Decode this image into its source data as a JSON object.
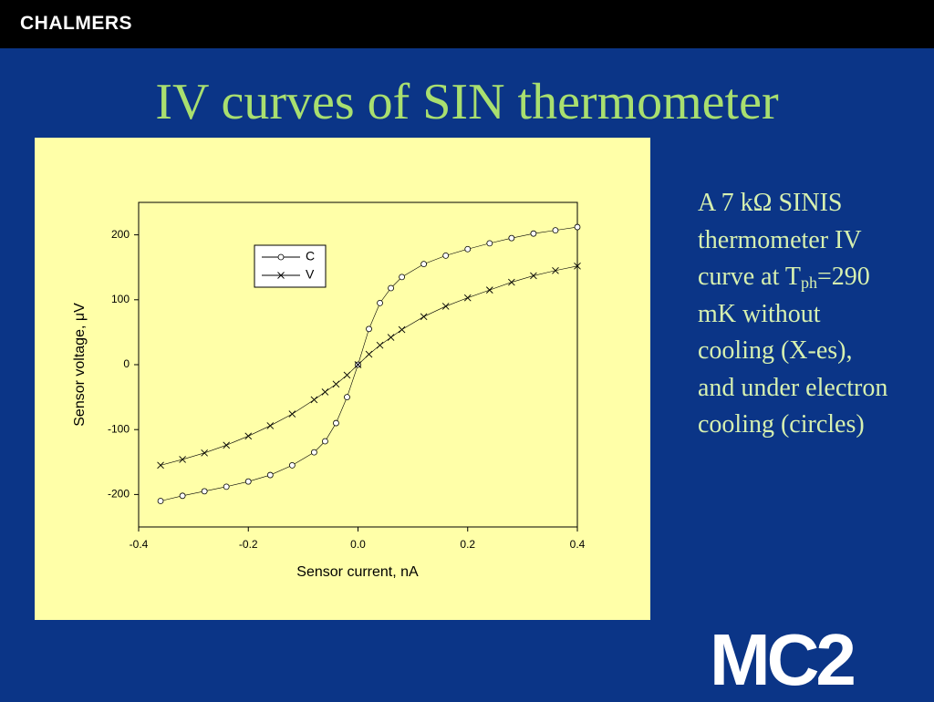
{
  "header": {
    "brand": "CHALMERS"
  },
  "slide_title": "IV curves of SIN thermometer",
  "description": [
    "A 7 kΩ SINIS thermometer IV curve at T",
    "ph",
    "=290 mK without cooling (X-es), and under electron cooling (circles)"
  ],
  "logo": "MC2",
  "chart_data": {
    "type": "line",
    "x_label": "Sensor current, nA",
    "y_label": "Sensor voltage, μV",
    "x": [
      -0.36,
      -0.32,
      -0.28,
      -0.24,
      -0.2,
      -0.16,
      -0.12,
      -0.08,
      -0.06,
      -0.04,
      -0.02,
      0,
      0.02,
      0.04,
      0.06,
      0.08,
      0.12,
      0.16,
      0.2,
      0.24,
      0.28,
      0.32,
      0.36,
      0.4
    ],
    "series": [
      {
        "name": "C",
        "marker": "circle",
        "color": "#000000",
        "values": [
          -210,
          -202,
          -195,
          -188,
          -180,
          -170,
          -155,
          -135,
          -118,
          -90,
          -50,
          0,
          55,
          95,
          118,
          135,
          155,
          168,
          178,
          187,
          195,
          202,
          207,
          212
        ]
      },
      {
        "name": "V",
        "marker": "x",
        "color": "#000000",
        "values": [
          -155,
          -146,
          -136,
          -124,
          -110,
          -94,
          -76,
          -54,
          -42,
          -30,
          -16,
          0,
          16,
          30,
          42,
          54,
          74,
          90,
          103,
          115,
          127,
          137,
          145,
          152
        ]
      }
    ],
    "xlim": [
      -0.4,
      0.4
    ],
    "xticks": [
      -0.4,
      -0.2,
      {
        "value": 0,
        "label": "0.0"
      },
      0.2,
      0.4
    ],
    "ylim": [
      -250,
      250
    ],
    "yticks": [
      -200,
      -100,
      0,
      100,
      200
    ],
    "legend": "upper left",
    "grid": false
  }
}
